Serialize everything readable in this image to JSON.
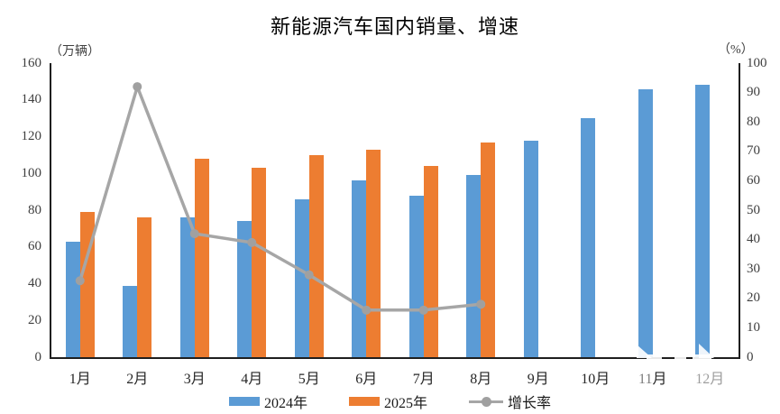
{
  "title": "新能源汽车国内销量、增速",
  "left_axis_unit": "（万辆）",
  "right_axis_unit": "（%）",
  "legend": [
    {
      "label": "2024年",
      "type": "bar",
      "color": "#5b9bd5"
    },
    {
      "label": "2025年",
      "type": "bar",
      "color": "#ed7d31"
    },
    {
      "label": "增长率",
      "type": "line",
      "color": "#a6a6a6"
    }
  ],
  "chart_data": {
    "type": "bar",
    "subtype": "grouped-bars-with-line-overlay",
    "title": "新能源汽车国内销量、增速",
    "categories": [
      "1月",
      "2月",
      "3月",
      "4月",
      "5月",
      "6月",
      "7月",
      "8月",
      "9月",
      "10月",
      "11月",
      "12月"
    ],
    "series": [
      {
        "name": "2024年",
        "type": "bar",
        "axis": "left",
        "color": "#5b9bd5",
        "values": [
          63,
          39,
          76,
          74,
          86,
          96,
          88,
          99,
          118,
          130,
          146,
          148
        ]
      },
      {
        "name": "2025年",
        "type": "bar",
        "axis": "left",
        "color": "#ed7d31",
        "values": [
          79,
          76,
          108,
          103,
          110,
          113,
          104,
          117,
          null,
          null,
          null,
          null
        ]
      },
      {
        "name": "增长率",
        "type": "line",
        "axis": "right",
        "color": "#a6a6a6",
        "marker": "circle",
        "values": [
          26,
          92,
          42,
          39,
          28,
          16,
          16,
          18,
          null,
          null,
          null,
          null
        ]
      }
    ],
    "left_axis": {
      "unit": "（万辆）",
      "min": 0,
      "max": 160,
      "step": 20
    },
    "right_axis": {
      "unit": "（%）",
      "min": 0,
      "max": 100,
      "step": 10
    },
    "grid": false,
    "legend_position": "bottom"
  }
}
